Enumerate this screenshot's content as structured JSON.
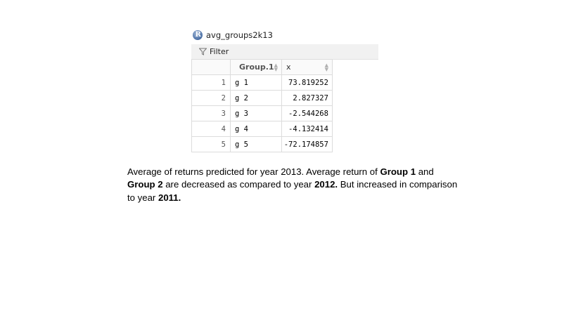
{
  "viewer": {
    "title": "avg_groups2k13",
    "filter_label": "Filter"
  },
  "table": {
    "columns": [
      "Group.1",
      "x"
    ],
    "rows": [
      {
        "index": "1",
        "group": "g 1",
        "x": "73.819252"
      },
      {
        "index": "2",
        "group": "g 2",
        "x": "2.827327"
      },
      {
        "index": "3",
        "group": "g 3",
        "x": "-2.544268"
      },
      {
        "index": "4",
        "group": "g 4",
        "x": "-4.132414"
      },
      {
        "index": "5",
        "group": "g 5",
        "x": "-72.174857"
      }
    ]
  },
  "caption": {
    "t1": "Average of returns predicted for year 2013. Average return of ",
    "b1": "Group 1",
    "t2": " and ",
    "b2": "Group 2",
    "t3": " are decreased as compared to year ",
    "b3": "2012.",
    "t4": " But increased in comparison to year ",
    "b4": "2011."
  },
  "colors": {
    "r_logo": "#4a6fa5",
    "toolbar_bg": "#f1f1f1",
    "grid_border": "#dcdcdc"
  },
  "icons": [
    "r-logo-icon",
    "filter-funnel-icon",
    "sort-arrows-icon"
  ]
}
